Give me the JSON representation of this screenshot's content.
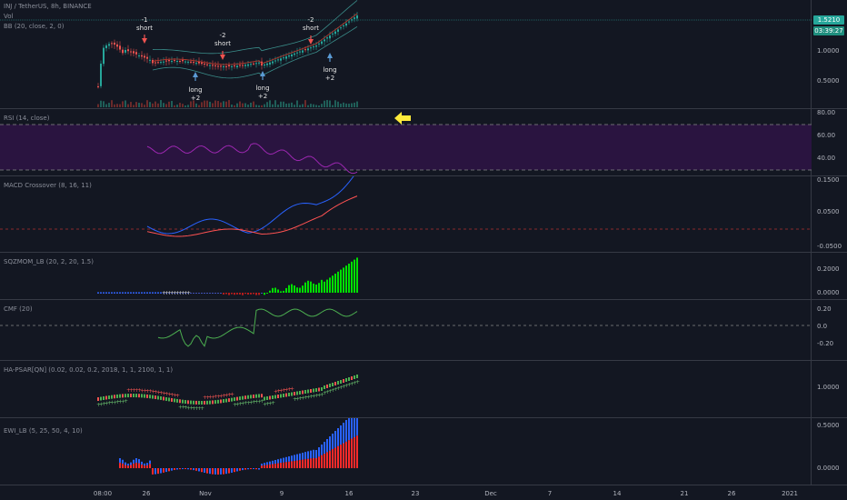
{
  "header": {
    "title": "INJ / TetherUS, 8h, BINANCE",
    "sub1": "Vol",
    "sub2": "BB (20, close, 2, 0)"
  },
  "price_badge": {
    "price": "1.5210",
    "timer": "03:39:27"
  },
  "panes": [
    {
      "label": "RSI (14, close)",
      "ticks": [
        "80.00",
        "60.00",
        "40.00"
      ]
    },
    {
      "label": "MACD Crossover (8, 16, 11)",
      "ticks": [
        "0.1500",
        "0.0500",
        "-0.0500"
      ]
    },
    {
      "label": "SQZMOM_LB (20, 2, 20, 1.5)",
      "ticks": [
        "0.2000",
        "0.0000"
      ]
    },
    {
      "label": "CMF (20)",
      "ticks": [
        "0.20",
        "0.0",
        "-0.20"
      ]
    },
    {
      "label": "HA-PSAR[QN] (0.02, 0.02, 0.2, 2018, 1, 1, 2100, 1, 1)",
      "ticks": [
        "1.0000"
      ]
    },
    {
      "label": "EWI_LB (5, 25, 50, 4, 10)",
      "ticks": [
        "0.5000",
        "0.0000"
      ]
    }
  ],
  "main_ticks": [
    "1.0000",
    "0.5000"
  ],
  "x_ticks": [
    "08:00",
    "26",
    "Nov",
    "9",
    "16",
    "23",
    "Dec",
    "7",
    "14",
    "21",
    "26",
    "2021"
  ],
  "annotations": [
    {
      "id": "n1a",
      "text": "-1"
    },
    {
      "id": "n1b",
      "text": "short"
    },
    {
      "id": "n2a",
      "text": "-2"
    },
    {
      "id": "n2b",
      "text": "short"
    },
    {
      "id": "n3a",
      "text": "-2"
    },
    {
      "id": "n3b",
      "text": "short"
    },
    {
      "id": "n4a",
      "text": "long"
    },
    {
      "id": "n4b",
      "text": "+2"
    },
    {
      "id": "n5a",
      "text": "long"
    },
    {
      "id": "n5b",
      "text": "+2"
    },
    {
      "id": "n6a",
      "text": "long"
    },
    {
      "id": "n6b",
      "text": "+2"
    }
  ],
  "colors": {
    "bg": "#131722",
    "up": "#26a69a",
    "down": "#ef5350",
    "rsi": "#9c27b0",
    "macd": "#2962ff",
    "signal": "#ff5252",
    "sqz": "#00e000",
    "cmf": "#4caf50",
    "ewi_blue": "#2962ff",
    "ewi_red": "#ff2a2a",
    "arrow": "#ffeb3b",
    "price_badge": "#26a69a"
  }
}
